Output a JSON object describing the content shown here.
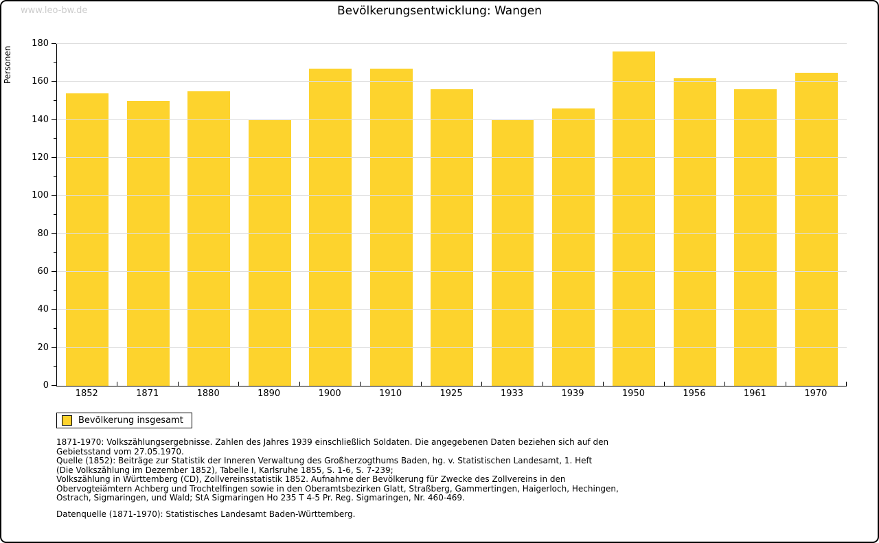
{
  "watermark": "www.leo-bw.de",
  "header": {
    "title": "Bevölkerungsentwicklung: Wangen"
  },
  "chart_data": {
    "type": "bar",
    "title": "Bevölkerungsentwicklung: Wangen",
    "ylabel": "Personen",
    "xlabel": "",
    "categories": [
      "1852",
      "1871",
      "1880",
      "1890",
      "1900",
      "1910",
      "1925",
      "1933",
      "1939",
      "1950",
      "1956",
      "1961",
      "1970"
    ],
    "values": [
      154,
      150,
      155,
      140,
      167,
      167,
      156,
      140,
      146,
      176,
      162,
      156,
      165
    ],
    "series_name": "Bevölkerung insgesamt",
    "ylim": [
      0,
      180
    ],
    "ytick_step": 20,
    "y_minor_step": 10,
    "grid": true,
    "legend_position": "bottom-left",
    "bar_color": "#FDD32D"
  },
  "legend": {
    "label": "Bevölkerung insgesamt",
    "swatch_color": "#FDD32D"
  },
  "footnotes": [
    "1871-1970: Volkszählungsergebnisse. Zahlen des Jahres 1939 einschließlich Soldaten. Die angegebenen Daten beziehen sich auf den",
    "Gebietsstand vom 27.05.1970.",
    "Quelle (1852): Beiträge zur Statistik der Inneren Verwaltung des Großherzogthums Baden, hg. v. Statistischen Landesamt, 1. Heft",
    "(Die Volkszählung im Dezember 1852), Tabelle I, Karlsruhe 1855, S. 1-6, S. 7-239;",
    "Volkszählung in Württemberg (CD), Zollvereinsstatistik 1852. Aufnahme der Bevölkerung für Zwecke des Zollvereins in den",
    "Obervogteiämtern Achberg und Trochtelfingen sowie in den Oberamtsbezirken Glatt, Straßberg, Gammertingen, Haigerloch, Hechingen,",
    "Ostrach, Sigmaringen, und Wald; StA Sigmaringen Ho 235 T 4-5 Pr. Reg. Sigmaringen, Nr. 460-469."
  ],
  "datasource": "Datenquelle (1871-1970): Statistisches Landesamt Baden-Württemberg.",
  "colors": {
    "bar": "#FDD32D",
    "gridline": "#DDDDDD",
    "axis": "#000000",
    "watermark": "#CCCCCC",
    "background": "#FFFFFF",
    "border": "#000000"
  }
}
